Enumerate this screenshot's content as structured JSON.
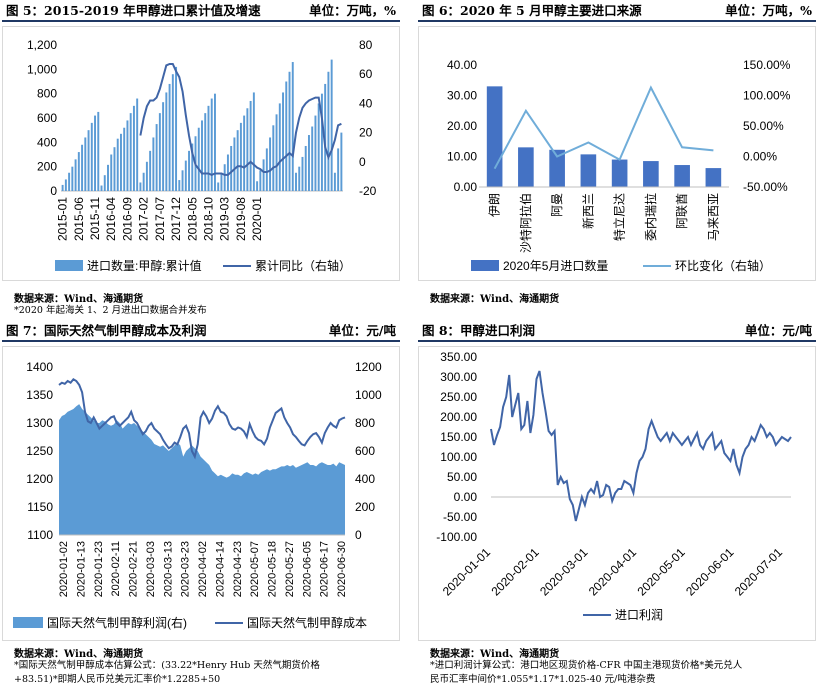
{
  "colors": {
    "bar": "#4472c4",
    "bar_light": "#5b9bd5",
    "line": "#4065a7",
    "line_light": "#70add9",
    "area": "#5b9bd5",
    "header_rule": "#1f3864"
  },
  "panels": {
    "p5": {
      "title": "图 5：2015-2019 年甲醇进口累计值及增速",
      "unit": "单位：万吨，%",
      "source": "数据来源：Wind、海通期货",
      "note": "*2020 年起海关 1、2 月进出口数据合并发布"
    },
    "p6": {
      "title": "图 6：2020 年 5 月甲醇主要进口来源",
      "unit": "单位：万吨，%",
      "source": "数据来源：Wind、海通期货"
    },
    "p7": {
      "title": "图 7：国际天然气制甲醇成本及利润",
      "unit": "单位：元/吨",
      "source": "数据来源：Wind、海通期货",
      "note1": "*国际天然气制甲醇成本估算公式：(33.22*Henry Hub 天然气期货价格",
      "note2": "+83.51)*即期人民币兑美元汇率价*1.2285+50"
    },
    "p8": {
      "title": "图 8：甲醇进口利润",
      "unit": "单位：元/吨",
      "source": "数据来源：Wind、海通期货",
      "note1": "*进口利润计算公式：港口地区现货价格-CFR 中国主港现货价格*美元兑人",
      "note2": "民币汇率中间价*1.055*1.17*1.025-40 元/吨港杂费"
    }
  },
  "chart_data": [
    {
      "id": "p5",
      "type": "bar",
      "x_ticks": [
        "2015-01",
        "2015-06",
        "2015-11",
        "2016-04",
        "2016-09",
        "2017-02",
        "2017-07",
        "2017-12",
        "2018-05",
        "2018-10",
        "2019-03",
        "2019-08",
        "2020-01"
      ],
      "y_left": {
        "min": 0,
        "max": 1200,
        "step": 200,
        "ticks": [
          "0",
          "200",
          "400",
          "600",
          "800",
          "1,000",
          "1,200"
        ]
      },
      "y_right": {
        "min": -20,
        "max": 80,
        "step": 20,
        "ticks": [
          "-20",
          "0",
          "20",
          "40",
          "60",
          "80"
        ]
      },
      "series": [
        {
          "name": "进口数量:甲醇:累计值",
          "type": "bar",
          "values": [
            50,
            95,
            150,
            200,
            260,
            320,
            380,
            440,
            500,
            560,
            620,
            650,
            45,
            130,
            215,
            300,
            360,
            430,
            470,
            520,
            580,
            640,
            700,
            760,
            70,
            150,
            240,
            330,
            440,
            550,
            640,
            730,
            810,
            880,
            960,
            1020,
            90,
            170,
            250,
            330,
            390,
            450,
            520,
            580,
            640,
            700,
            760,
            800,
            70,
            150,
            220,
            300,
            370,
            440,
            500,
            560,
            620,
            680,
            740,
            810,
            80,
            170,
            260,
            350,
            440,
            540,
            630,
            720,
            810,
            900,
            980,
            1060,
            150,
            200,
            280,
            370,
            460,
            530,
            620,
            720,
            800,
            880,
            980,
            1080,
            150,
            350,
            480
          ]
        },
        {
          "name": "累计同比（右轴）",
          "type": "line",
          "values": [
            null,
            null,
            null,
            null,
            null,
            null,
            null,
            null,
            null,
            null,
            null,
            null,
            null,
            null,
            null,
            null,
            null,
            null,
            null,
            null,
            null,
            null,
            null,
            null,
            18,
            30,
            38,
            42,
            42,
            44,
            50,
            58,
            66,
            67,
            67,
            62,
            58,
            48,
            32,
            18,
            6,
            -2,
            -5,
            -8,
            -8,
            -8,
            -9,
            -8,
            -8,
            -8,
            -9,
            -9,
            -7,
            -5,
            -3,
            -3,
            -4,
            -2,
            0,
            -2,
            -4,
            -5,
            -7,
            -7,
            -6,
            -4,
            -3,
            0,
            2,
            4,
            6,
            4,
            20,
            30,
            37,
            40,
            42,
            43,
            44,
            44,
            30,
            10,
            3,
            8,
            15,
            25,
            26
          ]
        }
      ]
    },
    {
      "id": "p6",
      "type": "bar",
      "categories": [
        "伊朗",
        "沙特阿拉伯",
        "阿曼",
        "新西兰",
        "特立尼达",
        "委内瑞拉",
        "阿联酋",
        "马来西亚"
      ],
      "y_left": {
        "ticks": [
          "0.00",
          "10.00",
          "20.00",
          "30.00",
          "40.00"
        ],
        "min": 0,
        "max": 40
      },
      "y_right": {
        "ticks": [
          "-50.00%",
          "0.00%",
          "50.00%",
          "100.00%",
          "150.00%"
        ],
        "min": -50,
        "max": 150
      },
      "series": [
        {
          "name": "2020年5月进口数量",
          "type": "bar",
          "values": [
            33.0,
            13.0,
            12.2,
            10.7,
            9.0,
            8.5,
            7.2,
            6.2
          ]
        },
        {
          "name": "环比变化（右轴）",
          "type": "line",
          "values": [
            -20,
            75,
            0,
            23,
            -5,
            113,
            15,
            10
          ]
        }
      ]
    },
    {
      "id": "p7",
      "type": "area",
      "x_ticks": [
        "2020-01-02",
        "2020-01-13",
        "2020-01-23",
        "2020-02-11",
        "2020-02-21",
        "2020-03-03",
        "2020-03-13",
        "2020-03-23",
        "2020-04-02",
        "2020-04-14",
        "2020-04-23",
        "2020-05-07",
        "2020-05-18",
        "2020-05-27",
        "2020-06-05",
        "2020-06-17",
        "2020-06-30"
      ],
      "y_left": {
        "min": 1100,
        "max": 1400,
        "step": 50,
        "ticks": [
          "1100",
          "1150",
          "1200",
          "1250",
          "1300",
          "1350",
          "1400"
        ]
      },
      "y_right": {
        "min": 0,
        "max": 1200,
        "step": 200,
        "ticks": [
          "0",
          "200",
          "400",
          "600",
          "800",
          "1000",
          "1200"
        ]
      },
      "series": [
        {
          "name": "国际天然气制甲醇利润(右)",
          "type": "area",
          "values": [
            820,
            850,
            860,
            880,
            890,
            900,
            920,
            935,
            900,
            880,
            860,
            840,
            820,
            800,
            800,
            820,
            810,
            790,
            780,
            790,
            820,
            800,
            760,
            780,
            800,
            790,
            800,
            780,
            760,
            740,
            720,
            700,
            680,
            650,
            640,
            630,
            640,
            620,
            600,
            620,
            640,
            660,
            640,
            560,
            600,
            620,
            640,
            620,
            600,
            560,
            540,
            520,
            500,
            460,
            440,
            420,
            430,
            420,
            410,
            420,
            440,
            430,
            430,
            420,
            440,
            450,
            440,
            430,
            440,
            430,
            450,
            460,
            470,
            460,
            470,
            470,
            480,
            490,
            490,
            500,
            490,
            500,
            480,
            490,
            500,
            510,
            520,
            500,
            500,
            490,
            510,
            520,
            510,
            500,
            500,
            510,
            490,
            520,
            510,
            500
          ]
        },
        {
          "name": "国际天然气制甲醇成本",
          "type": "line",
          "values": [
            1368,
            1372,
            1370,
            1375,
            1372,
            1378,
            1375,
            1368,
            1355,
            1320,
            1303,
            1300,
            1310,
            1300,
            1290,
            1295,
            1300,
            1305,
            1310,
            1312,
            1300,
            1295,
            1300,
            1305,
            1310,
            1320,
            1305,
            1300,
            1290,
            1280,
            1285,
            1295,
            1300,
            1290,
            1285,
            1280,
            1270,
            1262,
            1255,
            1258,
            1265,
            1262,
            1275,
            1290,
            1295,
            1282,
            1250,
            1240,
            1262,
            1310,
            1320,
            1312,
            1300,
            1308,
            1322,
            1330,
            1320,
            1318,
            1312,
            1298,
            1290,
            1288,
            1292,
            1290,
            1285,
            1275,
            1298,
            1285,
            1275,
            1270,
            1268,
            1262,
            1272,
            1292,
            1305,
            1318,
            1322,
            1326,
            1310,
            1300,
            1292,
            1280,
            1275,
            1268,
            1262,
            1260,
            1268,
            1275,
            1280,
            1282,
            1275,
            1265,
            1282,
            1292,
            1300,
            1295,
            1292,
            1305,
            1308,
            1310
          ]
        }
      ]
    },
    {
      "id": "p8",
      "type": "line",
      "x_ticks": [
        "2020-01-01",
        "2020-02-01",
        "2020-03-01",
        "2020-04-01",
        "2020-05-01",
        "2020-06-01",
        "2020-07-01"
      ],
      "y": {
        "min": -100,
        "max": 350,
        "step": 50,
        "ticks": [
          "-100.00",
          "-50.00",
          "0.00",
          "50.00",
          "100.00",
          "150.00",
          "200.00",
          "250.00",
          "300.00",
          "350.00"
        ]
      },
      "series": [
        {
          "name": "进口利润",
          "type": "line",
          "values": [
            170,
            130,
            155,
            175,
            225,
            250,
            305,
            200,
            230,
            260,
            170,
            180,
            240,
            160,
            205,
            295,
            315,
            260,
            215,
            165,
            155,
            165,
            30,
            50,
            35,
            40,
            -5,
            -20,
            -60,
            -30,
            0,
            -20,
            10,
            20,
            10,
            40,
            0,
            5,
            30,
            25,
            -10,
            10,
            20,
            20,
            40,
            35,
            30,
            10,
            60,
            90,
            100,
            120,
            170,
            190,
            170,
            150,
            140,
            150,
            160,
            140,
            160,
            150,
            140,
            130,
            140,
            150,
            130,
            145,
            160,
            130,
            120,
            140,
            150,
            160,
            120,
            130,
            140,
            110,
            100,
            90,
            120,
            80,
            60,
            100,
            120,
            130,
            150,
            140,
            160,
            180,
            170,
            150,
            160,
            150,
            130,
            140,
            150,
            145,
            140,
            150
          ]
        }
      ]
    }
  ]
}
